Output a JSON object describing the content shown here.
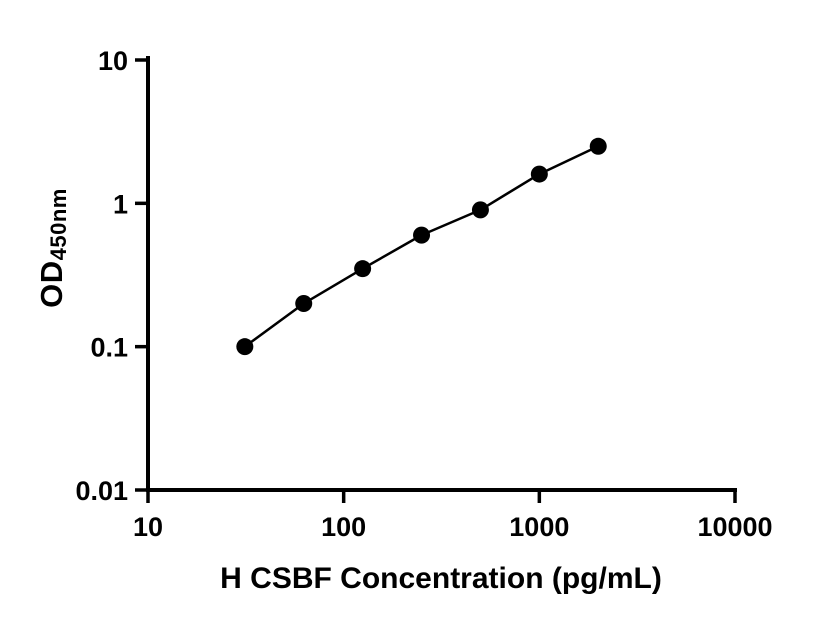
{
  "figure": {
    "background_color": "#ffffff",
    "axis_color": "#000000",
    "text_color": "#000000"
  },
  "chart_data": {
    "type": "scatter",
    "title": "",
    "xlabel": "H CSBF Concentration (pg/mL)",
    "ylabel": "OD",
    "ylabel_sub": "450nm",
    "xscale": "log",
    "yscale": "log",
    "xlim": [
      10,
      10000
    ],
    "ylim": [
      0.01,
      10
    ],
    "x_ticks": [
      10,
      100,
      1000,
      10000
    ],
    "x_tick_labels": [
      "10",
      "100",
      "1000",
      "10000"
    ],
    "y_ticks": [
      0.01,
      0.1,
      1,
      10
    ],
    "y_tick_labels": [
      "0.01",
      "0.1",
      "1",
      "10"
    ],
    "x": [
      31.25,
      62.5,
      125,
      250,
      500,
      1000,
      2000
    ],
    "y": [
      0.1,
      0.2,
      0.35,
      0.6,
      0.9,
      1.6,
      2.5
    ],
    "line_color": "#000000",
    "marker": "circle",
    "marker_color": "#000000",
    "grid": false,
    "legend_position": "none"
  }
}
